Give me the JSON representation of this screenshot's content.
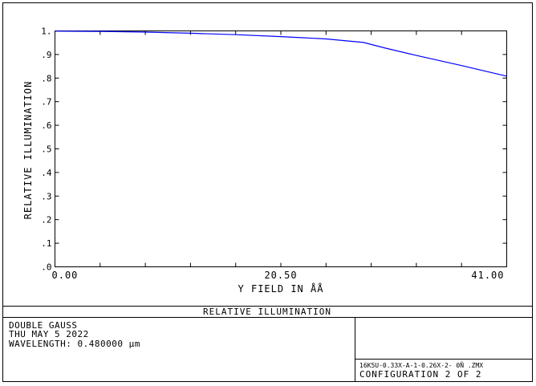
{
  "chart_data": {
    "type": "line",
    "title": "RELATIVE ILLUMINATION",
    "xlabel": "Y FIELD IN  ÅÅ",
    "ylabel": "RELATIVE ILLUMINATION",
    "xlim": [
      0,
      41.0
    ],
    "ylim": [
      0,
      1.0
    ],
    "x_tick_labels": [
      "0.00",
      "20.50",
      "41.00"
    ],
    "y_tick_labels": [
      ".0",
      ".1",
      ".2",
      ".3",
      ".4",
      ".5",
      ".6",
      ".7",
      ".8",
      ".9",
      "1."
    ],
    "grid": false,
    "series": [
      {
        "color": "#0000ff",
        "x": [
          0,
          4.1,
          8.2,
          12.3,
          16.4,
          20.5,
          24.6,
          28.0,
          30.0,
          32.8,
          36.9,
          41.0
        ],
        "y": [
          0.999,
          0.998,
          0.995,
          0.99,
          0.984,
          0.976,
          0.966,
          0.951,
          0.927,
          0.896,
          0.853,
          0.808
        ]
      }
    ]
  },
  "info": {
    "left_lines": [
      "DOUBLE GAUSS",
      "THU MAY 5 2022",
      "WAVELENGTH: 0.480000 µm"
    ],
    "file_name": "16K5U-0.33X-A-1-0.26X-2- 0Ñ   .ZMX",
    "configuration": "CONFIGURATION 2 OF 2"
  }
}
